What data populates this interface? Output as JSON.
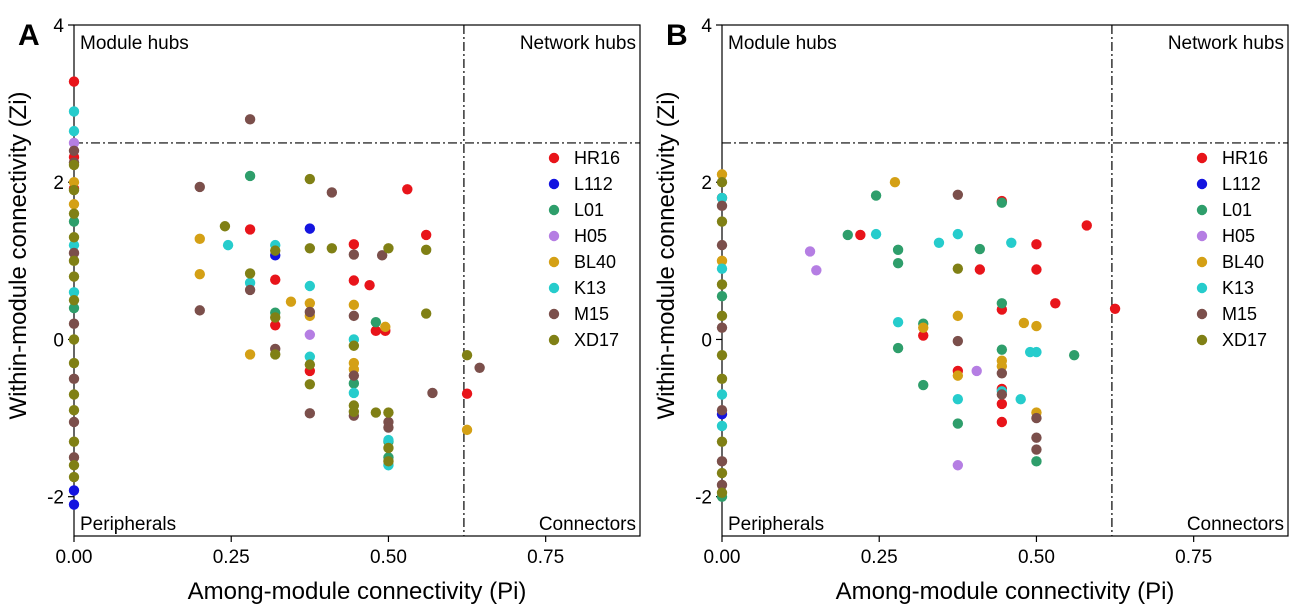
{
  "chart_data": [
    {
      "type": "scatter",
      "panel": "A",
      "xlabel": "Among-module connectivity (Pi)",
      "ylabel": "Within-module connectivity (Zi)",
      "xlim": [
        0,
        0.9
      ],
      "ylim": [
        -2.5,
        4
      ],
      "xticks": [
        "0.00",
        "0.25",
        "0.50",
        "0.75"
      ],
      "xtick_values": [
        0,
        0.25,
        0.5,
        0.75
      ],
      "yticks": [
        "-2",
        "0",
        "2",
        "4"
      ],
      "ytick_values": [
        -2,
        0,
        2,
        4
      ],
      "thresholds": {
        "pi": 0.62,
        "zi": 2.5
      },
      "quadrants": {
        "top_left": "Module hubs",
        "top_right": "Network hubs",
        "bottom_left": "Peripherals",
        "bottom_right": "Connectors"
      },
      "legend_position": "right",
      "series": [
        {
          "name": "HR16",
          "color": "#e8141a",
          "points": [
            [
              0,
              3.28
            ],
            [
              0,
              2.32
            ],
            [
              0,
              1.92
            ],
            [
              0.28,
              1.4
            ],
            [
              0.32,
              0.76
            ],
            [
              0.32,
              0.18
            ],
            [
              0.375,
              -0.4
            ],
            [
              0.445,
              1.21
            ],
            [
              0.445,
              0.75
            ],
            [
              0.47,
              0.69
            ],
            [
              0.48,
              0.11
            ],
            [
              0.495,
              0.11
            ],
            [
              0.53,
              1.91
            ],
            [
              0.56,
              1.33
            ],
            [
              0.625,
              -0.69
            ]
          ]
        },
        {
          "name": "L112",
          "color": "#1414e0",
          "points": [
            [
              0,
              -1.92
            ],
            [
              0,
              -2.1
            ],
            [
              0.32,
              1.07
            ],
            [
              0.375,
              1.41
            ]
          ]
        },
        {
          "name": "L01",
          "color": "#2e9e6b",
          "points": [
            [
              0,
              1.5
            ],
            [
              0,
              0.4
            ],
            [
              0.28,
              2.08
            ],
            [
              0.32,
              0.34
            ],
            [
              0.445,
              -0.56
            ],
            [
              0.48,
              0.22
            ],
            [
              0.5,
              -1.3
            ],
            [
              0.5,
              -1.5
            ]
          ]
        },
        {
          "name": "H05",
          "color": "#b57ee3",
          "points": [
            [
              0,
              2.5
            ],
            [
              0.375,
              0.06
            ]
          ]
        },
        {
          "name": "BL40",
          "color": "#d4a015",
          "points": [
            [
              0,
              2.0
            ],
            [
              0,
              1.72
            ],
            [
              0.2,
              1.28
            ],
            [
              0.2,
              0.83
            ],
            [
              0.28,
              -0.19
            ],
            [
              0.345,
              0.48
            ],
            [
              0.375,
              0.46
            ],
            [
              0.375,
              0.3
            ],
            [
              0.445,
              0.44
            ],
            [
              0.445,
              -0.3
            ],
            [
              0.445,
              -0.38
            ],
            [
              0.495,
              0.16
            ],
            [
              0.625,
              -1.15
            ]
          ]
        },
        {
          "name": "K13",
          "color": "#26cccc",
          "points": [
            [
              0,
              2.9
            ],
            [
              0,
              2.65
            ],
            [
              0,
              1.2
            ],
            [
              0,
              0.6
            ],
            [
              0.245,
              1.2
            ],
            [
              0.28,
              0.72
            ],
            [
              0.32,
              1.2
            ],
            [
              0.375,
              0.68
            ],
            [
              0.375,
              -0.22
            ],
            [
              0.445,
              0.0
            ],
            [
              0.445,
              -0.68
            ],
            [
              0.5,
              -1.28
            ],
            [
              0.5,
              -1.6
            ]
          ]
        },
        {
          "name": "M15",
          "color": "#7b4f4b",
          "points": [
            [
              0,
              2.4
            ],
            [
              0,
              2.25
            ],
            [
              0,
              1.1
            ],
            [
              0,
              0.2
            ],
            [
              0,
              -0.5
            ],
            [
              0,
              -1.05
            ],
            [
              0,
              -1.5
            ],
            [
              0.2,
              1.94
            ],
            [
              0.2,
              0.37
            ],
            [
              0.28,
              2.8
            ],
            [
              0.28,
              0.63
            ],
            [
              0.32,
              -0.12
            ],
            [
              0.375,
              0.35
            ],
            [
              0.375,
              -0.94
            ],
            [
              0.41,
              1.87
            ],
            [
              0.445,
              1.08
            ],
            [
              0.445,
              0.3
            ],
            [
              0.445,
              -0.46
            ],
            [
              0.445,
              -0.97
            ],
            [
              0.49,
              1.07
            ],
            [
              0.5,
              -1.05
            ],
            [
              0.5,
              -1.12
            ],
            [
              0.57,
              -0.68
            ],
            [
              0.645,
              -0.36
            ]
          ]
        },
        {
          "name": "XD17",
          "color": "#808015",
          "points": [
            [
              0,
              2.22
            ],
            [
              0,
              1.9
            ],
            [
              0,
              1.6
            ],
            [
              0,
              1.3
            ],
            [
              0,
              1.0
            ],
            [
              0,
              0.8
            ],
            [
              0,
              0.5
            ],
            [
              0,
              0.0
            ],
            [
              0,
              -0.3
            ],
            [
              0,
              -0.7
            ],
            [
              0,
              -0.9
            ],
            [
              0,
              -1.3
            ],
            [
              0,
              -1.6
            ],
            [
              0,
              -1.75
            ],
            [
              0.24,
              1.44
            ],
            [
              0.28,
              0.84
            ],
            [
              0.32,
              1.13
            ],
            [
              0.32,
              0.28
            ],
            [
              0.32,
              -0.19
            ],
            [
              0.375,
              2.04
            ],
            [
              0.375,
              1.16
            ],
            [
              0.375,
              -0.32
            ],
            [
              0.375,
              -0.57
            ],
            [
              0.41,
              1.16
            ],
            [
              0.445,
              -0.08
            ],
            [
              0.445,
              -0.84
            ],
            [
              0.445,
              -0.92
            ],
            [
              0.48,
              -0.93
            ],
            [
              0.5,
              -0.93
            ],
            [
              0.5,
              1.16
            ],
            [
              0.5,
              -1.38
            ],
            [
              0.5,
              -1.55
            ],
            [
              0.56,
              1.14
            ],
            [
              0.56,
              0.33
            ],
            [
              0.625,
              -0.2
            ]
          ]
        }
      ]
    },
    {
      "type": "scatter",
      "panel": "B",
      "xlabel": "Among-module connectivity (Pi)",
      "ylabel": "Within-module connectivity (Zi)",
      "xlim": [
        0,
        0.9
      ],
      "ylim": [
        -2.5,
        4
      ],
      "xticks": [
        "0.00",
        "0.25",
        "0.50",
        "0.75"
      ],
      "xtick_values": [
        0,
        0.25,
        0.5,
        0.75
      ],
      "yticks": [
        "-2",
        "0",
        "2",
        "4"
      ],
      "ytick_values": [
        -2,
        0,
        2,
        4
      ],
      "thresholds": {
        "pi": 0.62,
        "zi": 2.5
      },
      "quadrants": {
        "top_left": "Module hubs",
        "top_right": "Network hubs",
        "bottom_left": "Peripherals",
        "bottom_right": "Connectors"
      },
      "legend_position": "right",
      "series": [
        {
          "name": "HR16",
          "color": "#e8141a",
          "points": [
            [
              0,
              1.8
            ],
            [
              0.22,
              1.33
            ],
            [
              0.32,
              0.05
            ],
            [
              0.375,
              -0.4
            ],
            [
              0.41,
              0.89
            ],
            [
              0.445,
              1.76
            ],
            [
              0.445,
              0.38
            ],
            [
              0.445,
              -0.63
            ],
            [
              0.445,
              -0.82
            ],
            [
              0.445,
              -1.05
            ],
            [
              0.5,
              1.21
            ],
            [
              0.5,
              0.89
            ],
            [
              0.53,
              0.46
            ],
            [
              0.58,
              1.45
            ],
            [
              0.625,
              0.39
            ]
          ]
        },
        {
          "name": "L112",
          "color": "#1414e0",
          "points": [
            [
              0,
              -0.95
            ]
          ]
        },
        {
          "name": "L01",
          "color": "#2e9e6b",
          "points": [
            [
              0,
              -2.0
            ],
            [
              0,
              0.55
            ],
            [
              0.2,
              1.33
            ],
            [
              0.245,
              1.83
            ],
            [
              0.28,
              1.14
            ],
            [
              0.28,
              0.97
            ],
            [
              0.28,
              -0.11
            ],
            [
              0.32,
              0.2
            ],
            [
              0.32,
              -0.58
            ],
            [
              0.375,
              -1.07
            ],
            [
              0.41,
              1.15
            ],
            [
              0.445,
              1.74
            ],
            [
              0.445,
              0.46
            ],
            [
              0.445,
              -0.13
            ],
            [
              0.5,
              -1.55
            ],
            [
              0.56,
              -0.2
            ]
          ]
        },
        {
          "name": "H05",
          "color": "#b57ee3",
          "points": [
            [
              0.14,
              1.12
            ],
            [
              0.15,
              0.88
            ],
            [
              0.405,
              -0.4
            ],
            [
              0.375,
              -1.6
            ]
          ]
        },
        {
          "name": "BL40",
          "color": "#d4a015",
          "points": [
            [
              0,
              2.1
            ],
            [
              0,
              1.0
            ],
            [
              0.275,
              2.0
            ],
            [
              0.32,
              0.15
            ],
            [
              0.375,
              0.3
            ],
            [
              0.375,
              -0.46
            ],
            [
              0.445,
              -0.27
            ],
            [
              0.445,
              -0.34
            ],
            [
              0.48,
              0.21
            ],
            [
              0.5,
              0.17
            ],
            [
              0.5,
              -0.93
            ]
          ]
        },
        {
          "name": "K13",
          "color": "#26cccc",
          "points": [
            [
              0,
              1.8
            ],
            [
              0,
              0.9
            ],
            [
              0,
              -0.7
            ],
            [
              0,
              -1.1
            ],
            [
              0.245,
              1.34
            ],
            [
              0.28,
              0.22
            ],
            [
              0.345,
              1.23
            ],
            [
              0.375,
              1.34
            ],
            [
              0.375,
              -0.76
            ],
            [
              0.46,
              1.23
            ],
            [
              0.445,
              -0.66
            ],
            [
              0.475,
              -0.76
            ],
            [
              0.49,
              -0.16
            ],
            [
              0.5,
              -0.16
            ]
          ]
        },
        {
          "name": "M15",
          "color": "#7b4f4b",
          "points": [
            [
              0,
              1.7
            ],
            [
              0,
              1.2
            ],
            [
              0,
              0.15
            ],
            [
              0,
              -0.9
            ],
            [
              0,
              -1.55
            ],
            [
              0,
              -1.85
            ],
            [
              0.375,
              1.84
            ],
            [
              0.375,
              -0.02
            ],
            [
              0.445,
              -0.43
            ],
            [
              0.445,
              -0.7
            ],
            [
              0.5,
              -1.0
            ],
            [
              0.5,
              -1.25
            ],
            [
              0.5,
              -1.4
            ]
          ]
        },
        {
          "name": "XD17",
          "color": "#808015",
          "points": [
            [
              0,
              2.0
            ],
            [
              0,
              1.5
            ],
            [
              0,
              0.7
            ],
            [
              0,
              0.3
            ],
            [
              0,
              -0.2
            ],
            [
              0,
              -0.5
            ],
            [
              0,
              -1.3
            ],
            [
              0,
              -1.7
            ],
            [
              0,
              -1.95
            ],
            [
              0.375,
              0.9
            ]
          ]
        }
      ]
    }
  ]
}
